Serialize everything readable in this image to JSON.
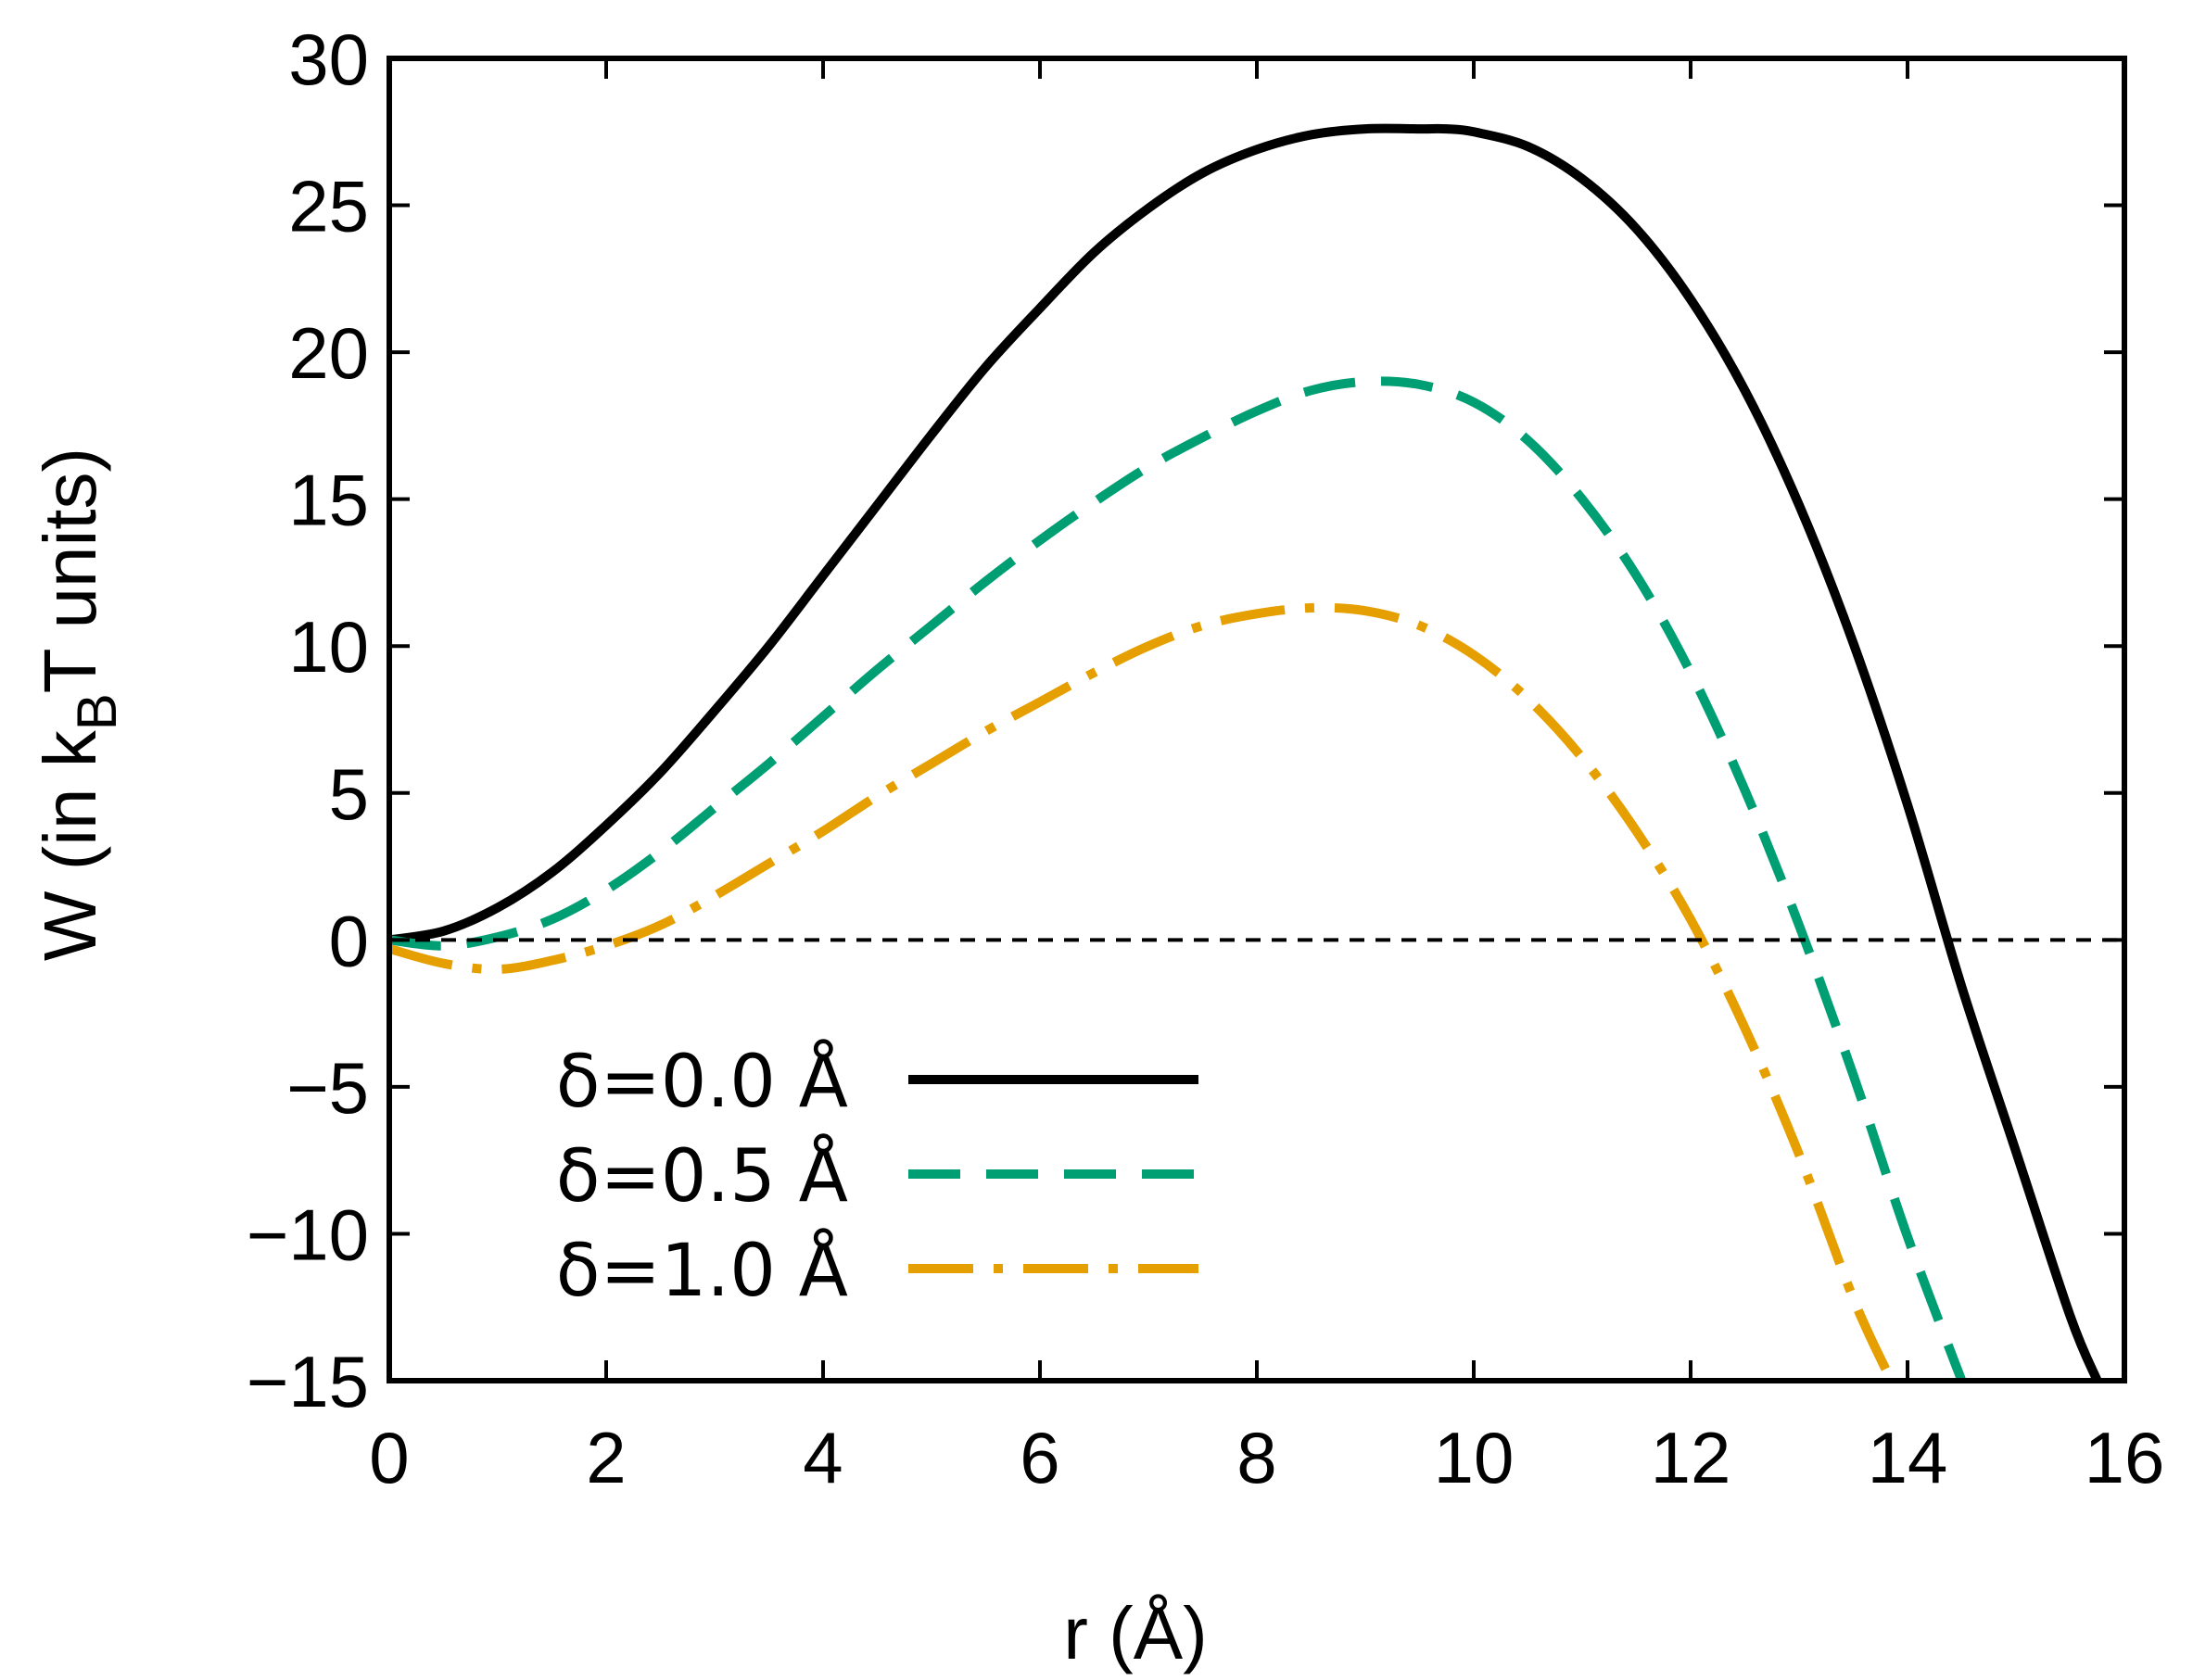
{
  "chart_data": {
    "type": "line",
    "xlabel": "r (Å)",
    "ylabel": {
      "prefix": "W (in k",
      "sub": "B",
      "suffix": "T units)"
    },
    "xlim": [
      0,
      16
    ],
    "ylim": [
      -15,
      30
    ],
    "xticks": [
      0,
      2,
      4,
      6,
      8,
      10,
      12,
      14,
      16
    ],
    "xtick_labels": [
      "0",
      "2",
      "4",
      "6",
      "8",
      "10",
      "12",
      "14",
      "16"
    ],
    "yticks": [
      -15,
      -10,
      -5,
      0,
      5,
      10,
      15,
      20,
      25,
      30
    ],
    "ytick_labels": [
      "−15",
      "−10",
      "−5",
      "0",
      "5",
      "10",
      "15",
      "20",
      "25",
      "30"
    ],
    "reference_line": {
      "y": 0,
      "style": "dashed",
      "color": "#000000"
    },
    "legend_position": "lower-left",
    "series": [
      {
        "name": "δ=0.0 Å",
        "color": "#000000",
        "dash": "solid",
        "x": [
          0,
          0.5,
          1,
          1.5,
          2,
          2.5,
          3,
          3.5,
          4,
          4.5,
          5,
          5.5,
          6,
          6.5,
          7,
          7.5,
          8,
          8.5,
          9,
          9.5,
          9.75,
          10,
          10.5,
          11,
          11.5,
          12,
          12.5,
          13,
          13.5,
          14,
          14.5,
          15,
          15.5,
          15.75
        ],
        "y": [
          0,
          0.3,
          1.1,
          2.3,
          3.9,
          5.7,
          7.8,
          10.0,
          12.4,
          14.8,
          17.2,
          19.5,
          21.5,
          23.4,
          24.9,
          26.1,
          26.9,
          27.4,
          27.6,
          27.6,
          27.6,
          27.5,
          27.0,
          25.9,
          24.2,
          21.8,
          18.7,
          14.8,
          10.1,
          4.6,
          -1.6,
          -7.2,
          -12.8,
          -15.0
        ]
      },
      {
        "name": "δ=0.5 Å",
        "color": "#009E73",
        "dash": "long-dash",
        "x": [
          0,
          0.5,
          1,
          1.5,
          2,
          2.5,
          3,
          3.5,
          4,
          4.5,
          5,
          5.5,
          6,
          6.5,
          7,
          7.5,
          8,
          8.5,
          9,
          9.5,
          10,
          10.5,
          11,
          11.5,
          12,
          12.5,
          13,
          13.5,
          14,
          14.5
        ],
        "y": [
          0,
          -0.2,
          0.1,
          0.7,
          1.7,
          3.0,
          4.5,
          6.0,
          7.6,
          9.2,
          10.7,
          12.2,
          13.6,
          14.9,
          16.1,
          17.1,
          18.0,
          18.7,
          19.0,
          18.9,
          18.3,
          17.0,
          15.0,
          12.4,
          9.1,
          5.1,
          0.5,
          -4.6,
          -10.1,
          -15.0
        ]
      },
      {
        "name": "δ=1.0 Å",
        "color": "#E69F00",
        "dash": "dash-dot",
        "x": [
          0,
          0.5,
          1,
          1.5,
          2,
          2.5,
          3,
          3.5,
          4,
          4.5,
          5,
          5.5,
          6,
          6.5,
          7,
          7.5,
          8,
          8.5,
          9,
          9.5,
          10,
          10.5,
          11,
          11.5,
          12,
          12.5,
          13,
          13.5,
          13.85
        ],
        "y": [
          -0.3,
          -0.8,
          -1.0,
          -0.7,
          -0.2,
          0.5,
          1.5,
          2.6,
          3.7,
          4.9,
          6.0,
          7.1,
          8.1,
          9.1,
          10.0,
          10.7,
          11.1,
          11.3,
          11.2,
          10.7,
          9.7,
          8.2,
          6.2,
          3.7,
          0.7,
          -3.0,
          -7.3,
          -12.2,
          -15.0
        ]
      }
    ]
  }
}
